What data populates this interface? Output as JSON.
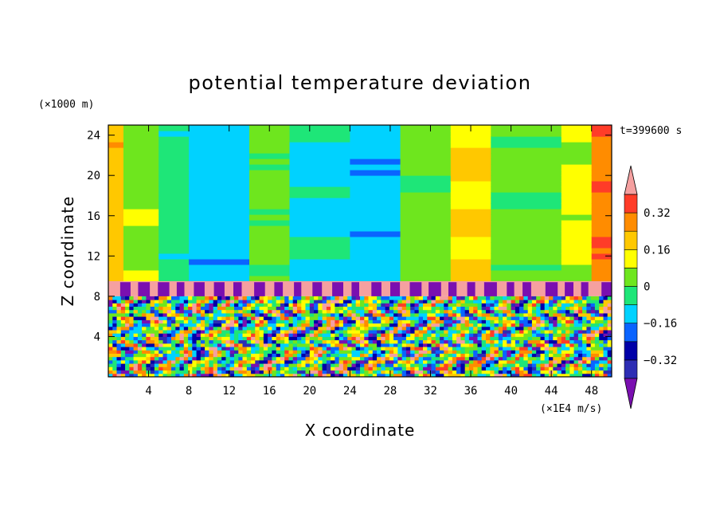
{
  "chart_data": {
    "type": "heatmap",
    "title": "potential temperature deviation",
    "xlabel": "X coordinate",
    "ylabel": "Z coordinate",
    "x_unit": "(×1E4 m/s)",
    "y_unit": "(×1000 m)",
    "time_label": "t=399600 s",
    "xlim": [
      0,
      50
    ],
    "ylim": [
      0,
      25
    ],
    "x_ticks": [
      4,
      8,
      12,
      16,
      20,
      24,
      28,
      32,
      36,
      40,
      44,
      48
    ],
    "x_tick_labels": [
      "4",
      "8",
      "12",
      "16",
      "20",
      "24",
      "28",
      "32",
      "36",
      "40",
      "44",
      "48"
    ],
    "y_ticks": [
      4,
      8,
      12,
      16,
      20,
      24
    ],
    "y_tick_labels": [
      "4",
      "8",
      "12",
      "16",
      "20",
      "24"
    ],
    "colorbar": {
      "levels": [
        -0.4,
        -0.32,
        -0.24,
        -0.16,
        -0.08,
        0,
        0.08,
        0.16,
        0.24,
        0.32,
        0.4
      ],
      "colors": [
        "#7a0fb0",
        "#2d2db4",
        "#0000a8",
        "#0a64ff",
        "#00d2ff",
        "#1ee678",
        "#6ee61e",
        "#ffff00",
        "#ffc800",
        "#ff8c00",
        "#ff3c28",
        "#f5a0a0"
      ],
      "tick_values": [
        0.32,
        0.16,
        0,
        -0.16,
        -0.32
      ],
      "tick_labels": [
        "0.32",
        "0.16",
        "0",
        "−0.16",
        "−0.32"
      ]
    },
    "regions": {
      "tropopause_band_z": [
        8,
        9.5
      ],
      "description_bands": [
        {
          "x_start": 0,
          "x_end": 1.5,
          "value": 0.2
        },
        {
          "x_start": 1.5,
          "x_end": 5,
          "value": 0.05
        },
        {
          "x_start": 5,
          "x_end": 8,
          "value": -0.05
        },
        {
          "x_start": 8,
          "x_end": 14,
          "value": -0.12
        },
        {
          "x_start": 14,
          "x_end": 18,
          "value": 0.02
        },
        {
          "x_start": 18,
          "x_end": 24,
          "value": -0.1
        },
        {
          "x_start": 24,
          "x_end": 29,
          "value": -0.14
        },
        {
          "x_start": 29,
          "x_end": 34,
          "value": 0.03
        },
        {
          "x_start": 34,
          "x_end": 38,
          "value": 0.17
        },
        {
          "x_start": 38,
          "x_end": 45,
          "value": 0.02
        },
        {
          "x_start": 45,
          "x_end": 48,
          "value": 0.1
        },
        {
          "x_start": 48,
          "x_end": 50,
          "value": 0.3
        }
      ]
    }
  }
}
